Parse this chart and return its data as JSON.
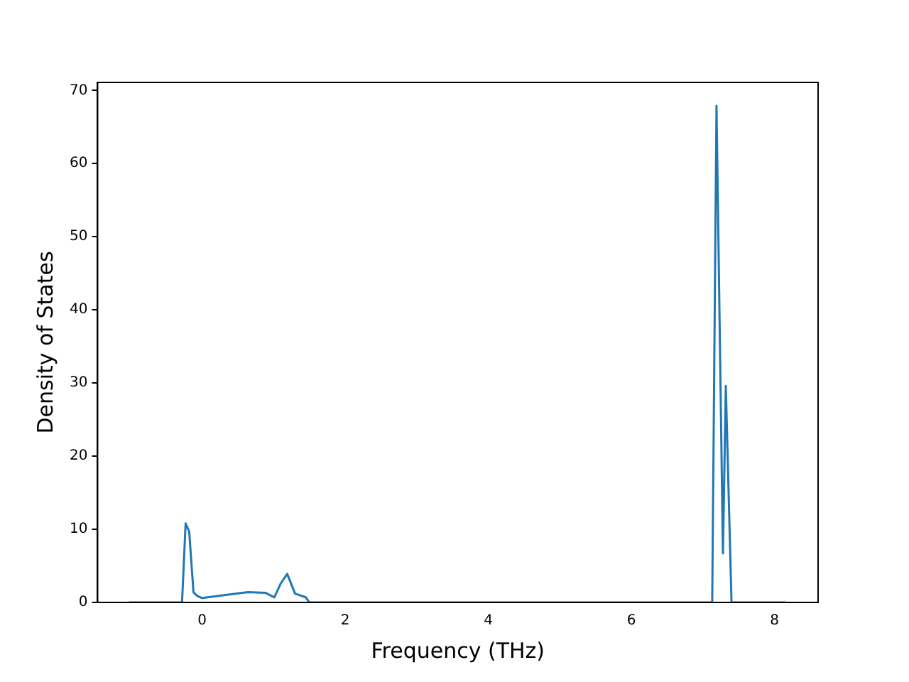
{
  "chart_data": {
    "type": "line",
    "xlabel": "Frequency (THz)",
    "ylabel": "Density of States",
    "x": [
      -1.02,
      -0.28,
      -0.23,
      -0.18,
      -0.12,
      -0.07,
      0.0,
      0.64,
      0.89,
      1.01,
      1.1,
      1.19,
      1.3,
      1.45,
      1.5,
      7.13,
      7.19,
      7.28,
      7.32,
      7.4,
      8.16
    ],
    "series": [
      {
        "color": "#1f77b4",
        "values": [
          0,
          0,
          10.8,
          9.7,
          1.4,
          0.9,
          0.6,
          1.4,
          1.3,
          0.7,
          2.6,
          3.9,
          1.2,
          0.7,
          0,
          0,
          67.9,
          6.7,
          29.6,
          0,
          0
        ]
      }
    ],
    "xlim": [
      -1.46,
      8.61
    ],
    "ylim": [
      0,
      71.1
    ],
    "xticks": [
      0,
      2,
      4,
      6,
      8
    ],
    "yticks": [
      0,
      10,
      20,
      30,
      40,
      50,
      60,
      70
    ],
    "grid": false,
    "legend": false,
    "marker": "none",
    "line_style": "solid"
  }
}
